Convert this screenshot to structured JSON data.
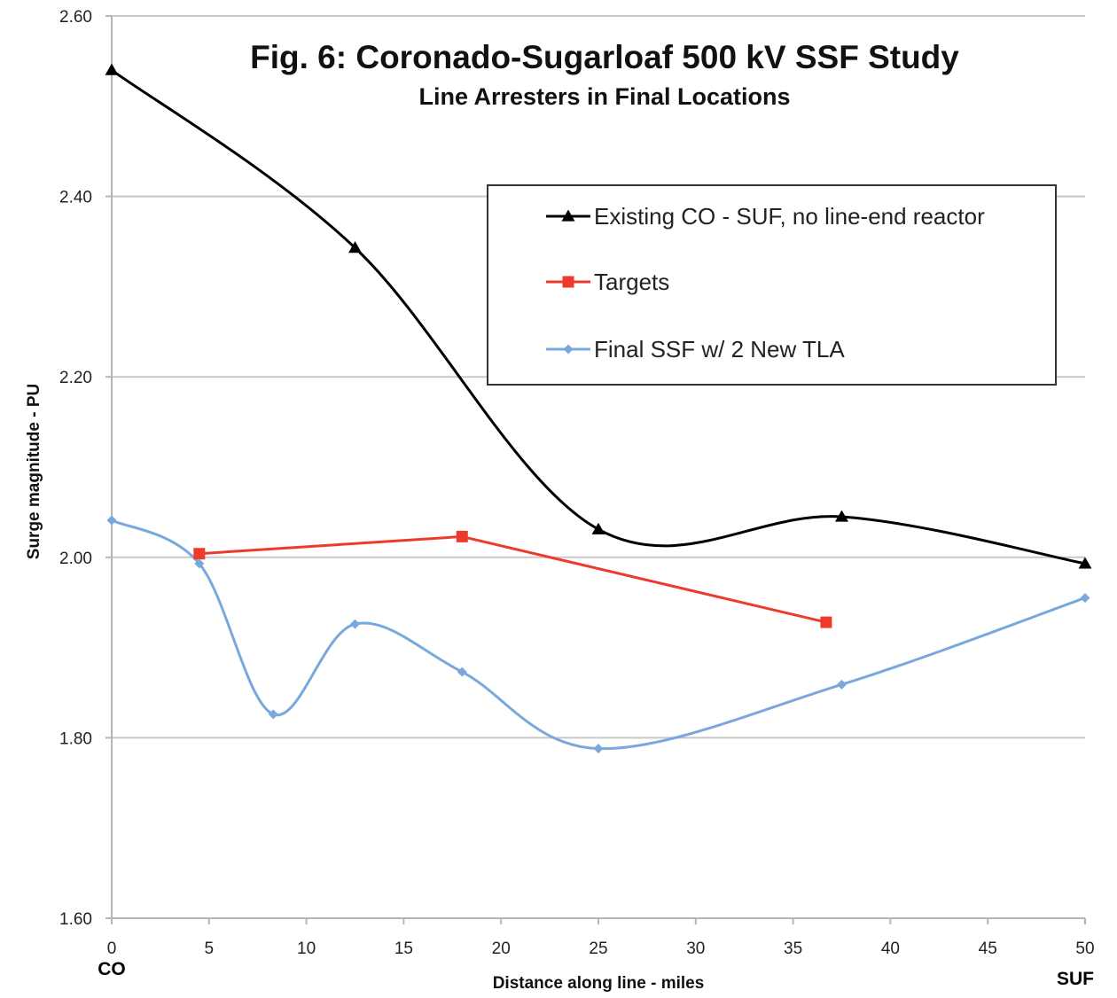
{
  "chart_data": {
    "type": "line",
    "title": "Fig. 6: Coronado-Sugarloaf 500 kV SSF Study",
    "subtitle": "Line Arresters in Final Locations",
    "xlabel": "Distance along line - miles",
    "ylabel": "Surge magnitude - PU",
    "xlim": [
      0,
      50
    ],
    "ylim": [
      1.6,
      2.6
    ],
    "x_ticks": [
      "0",
      "5",
      "10",
      "15",
      "20",
      "25",
      "30",
      "35",
      "40",
      "45",
      "50"
    ],
    "y_ticks": [
      "2.60",
      "2.40",
      "2.20",
      "2.00",
      "1.80",
      "1.60"
    ],
    "x_end_labels": {
      "left": "CO",
      "right": "SUF"
    },
    "grid": "horizontal",
    "legend_position": "top-right",
    "series": [
      {
        "name": "Existing CO - SUF, no line-end reactor",
        "color": "#000000",
        "marker": "triangle",
        "smooth": true,
        "x": [
          0,
          12.5,
          25,
          37.5,
          50
        ],
        "y": [
          2.54,
          2.343,
          2.031,
          2.045,
          1.993
        ]
      },
      {
        "name": "Targets",
        "color": "#ee3a2b",
        "marker": "square",
        "smooth": false,
        "x": [
          4.5,
          18,
          36.7
        ],
        "y": [
          2.004,
          2.023,
          1.928
        ]
      },
      {
        "name": "Final  SSF w/ 2 New TLA",
        "color": "#79a9dc",
        "marker": "diamond",
        "smooth": true,
        "x": [
          0,
          4.5,
          8.3,
          12.5,
          18,
          25,
          37.5,
          50
        ],
        "y": [
          2.041,
          1.993,
          1.826,
          1.926,
          1.873,
          1.788,
          1.859,
          1.955
        ]
      }
    ]
  }
}
